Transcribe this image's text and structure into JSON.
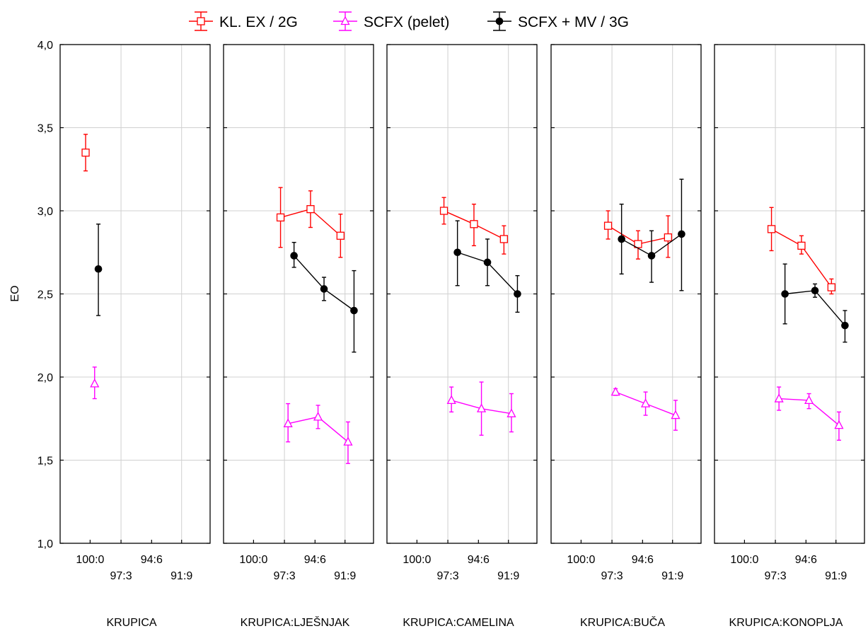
{
  "chart_data": {
    "type": "line",
    "ylabel": "EO",
    "ylim": [
      1.0,
      4.0
    ],
    "yticks": [
      "1,0",
      "1,5",
      "2,0",
      "2,5",
      "3,0",
      "3,5",
      "4,0"
    ],
    "x_categories": [
      "100:0",
      "97:3",
      "94:6",
      "91:9"
    ],
    "grid": true,
    "legend_position": "top",
    "series": [
      {
        "key": "kl",
        "name": "KL. EX / 2G",
        "color": "#ff0000",
        "marker": "open-square"
      },
      {
        "key": "sc",
        "name": "SCFX (pelet)",
        "color": "#ff00ff",
        "marker": "open-triangle"
      },
      {
        "key": "mv",
        "name": "SCFX + MV / 3G",
        "color": "#000000",
        "marker": "filled-circle"
      }
    ],
    "panels": [
      {
        "label": "KRUPICA",
        "data": {
          "kl": [
            {
              "x": "100:0",
              "y": 3.35,
              "lo": 3.24,
              "hi": 3.46
            }
          ],
          "sc": [
            {
              "x": "100:0",
              "y": 1.96,
              "lo": 1.87,
              "hi": 2.06
            }
          ],
          "mv": [
            {
              "x": "100:0",
              "y": 2.65,
              "lo": 2.37,
              "hi": 2.92
            }
          ]
        }
      },
      {
        "label": "KRUPICA:LJEŠNJAK",
        "data": {
          "kl": [
            {
              "x": "97:3",
              "y": 2.96,
              "lo": 2.78,
              "hi": 3.14
            },
            {
              "x": "94:6",
              "y": 3.01,
              "lo": 2.9,
              "hi": 3.12
            },
            {
              "x": "91:9",
              "y": 2.85,
              "lo": 2.72,
              "hi": 2.98
            }
          ],
          "sc": [
            {
              "x": "97:3",
              "y": 1.72,
              "lo": 1.61,
              "hi": 1.84
            },
            {
              "x": "94:6",
              "y": 1.76,
              "lo": 1.69,
              "hi": 1.83
            },
            {
              "x": "91:9",
              "y": 1.61,
              "lo": 1.48,
              "hi": 1.73
            }
          ],
          "mv": [
            {
              "x": "97:3",
              "y": 2.73,
              "lo": 2.66,
              "hi": 2.81
            },
            {
              "x": "94:6",
              "y": 2.53,
              "lo": 2.46,
              "hi": 2.6
            },
            {
              "x": "91:9",
              "y": 2.4,
              "lo": 2.15,
              "hi": 2.64
            }
          ]
        }
      },
      {
        "label": "KRUPICA:CAMELINA",
        "data": {
          "kl": [
            {
              "x": "97:3",
              "y": 3.0,
              "lo": 2.92,
              "hi": 3.08
            },
            {
              "x": "94:6",
              "y": 2.92,
              "lo": 2.79,
              "hi": 3.04
            },
            {
              "x": "91:9",
              "y": 2.83,
              "lo": 2.74,
              "hi": 2.91
            }
          ],
          "sc": [
            {
              "x": "97:3",
              "y": 1.86,
              "lo": 1.79,
              "hi": 1.94
            },
            {
              "x": "94:6",
              "y": 1.81,
              "lo": 1.65,
              "hi": 1.97
            },
            {
              "x": "91:9",
              "y": 1.78,
              "lo": 1.67,
              "hi": 1.9
            }
          ],
          "mv": [
            {
              "x": "97:3",
              "y": 2.75,
              "lo": 2.55,
              "hi": 2.94
            },
            {
              "x": "94:6",
              "y": 2.69,
              "lo": 2.55,
              "hi": 2.83
            },
            {
              "x": "91:9",
              "y": 2.5,
              "lo": 2.39,
              "hi": 2.61
            }
          ]
        }
      },
      {
        "label": "KRUPICA:BUČA",
        "data": {
          "kl": [
            {
              "x": "97:3",
              "y": 2.91,
              "lo": 2.83,
              "hi": 3.0
            },
            {
              "x": "94:6",
              "y": 2.8,
              "lo": 2.71,
              "hi": 2.88
            },
            {
              "x": "91:9",
              "y": 2.84,
              "lo": 2.72,
              "hi": 2.97
            }
          ],
          "sc": [
            {
              "x": "97:3",
              "y": 1.91,
              "lo": 1.89,
              "hi": 1.93
            },
            {
              "x": "94:6",
              "y": 1.84,
              "lo": 1.77,
              "hi": 1.91
            },
            {
              "x": "91:9",
              "y": 1.77,
              "lo": 1.68,
              "hi": 1.86
            }
          ],
          "mv": [
            {
              "x": "97:3",
              "y": 2.83,
              "lo": 2.62,
              "hi": 3.04
            },
            {
              "x": "94:6",
              "y": 2.73,
              "lo": 2.57,
              "hi": 2.88
            },
            {
              "x": "91:9",
              "y": 2.86,
              "lo": 2.52,
              "hi": 3.19
            }
          ]
        }
      },
      {
        "label": "KRUPICA:KONOPLJA",
        "data": {
          "kl": [
            {
              "x": "97:3",
              "y": 2.89,
              "lo": 2.76,
              "hi": 3.02
            },
            {
              "x": "94:6",
              "y": 2.79,
              "lo": 2.74,
              "hi": 2.85
            },
            {
              "x": "91:9",
              "y": 2.54,
              "lo": 2.5,
              "hi": 2.59
            }
          ],
          "sc": [
            {
              "x": "97:3",
              "y": 1.87,
              "lo": 1.8,
              "hi": 1.94
            },
            {
              "x": "94:6",
              "y": 1.86,
              "lo": 1.81,
              "hi": 1.9
            },
            {
              "x": "91:9",
              "y": 1.71,
              "lo": 1.62,
              "hi": 1.79
            }
          ],
          "mv": [
            {
              "x": "97:3",
              "y": 2.5,
              "lo": 2.32,
              "hi": 2.68
            },
            {
              "x": "94:6",
              "y": 2.52,
              "lo": 2.48,
              "hi": 2.56
            },
            {
              "x": "91:9",
              "y": 2.31,
              "lo": 2.21,
              "hi": 2.4
            }
          ]
        }
      }
    ]
  }
}
